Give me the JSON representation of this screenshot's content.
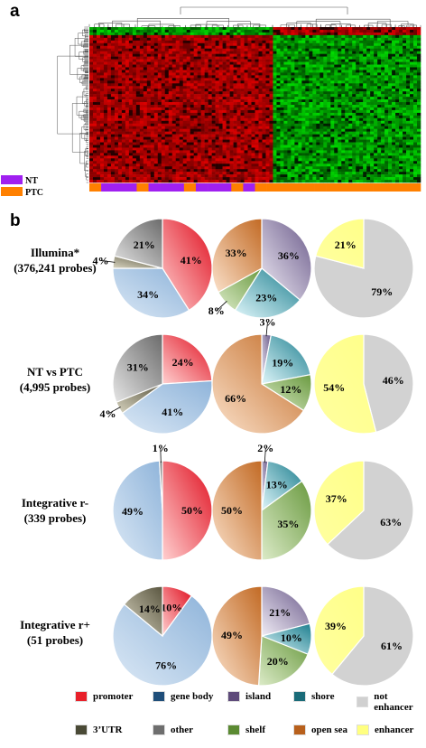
{
  "panels": {
    "a": "a",
    "b": "b"
  },
  "heatmap": {
    "legend": [
      {
        "name": "NT",
        "color": "#a020f0"
      },
      {
        "name": "PTC",
        "color": "#ff8000"
      }
    ],
    "sample_bar": [
      "PTC",
      "NT",
      "NT",
      "NT",
      "PTC",
      "NT",
      "NT",
      "NT",
      "PTC",
      "NT",
      "NT",
      "NT",
      "PTC",
      "NT",
      "PTC",
      "PTC",
      "PTC",
      "PTC",
      "PTC",
      "PTC",
      "PTC",
      "PTC",
      "PTC",
      "PTC",
      "PTC",
      "PTC",
      "PTC",
      "PTC"
    ],
    "colors": {
      "high": "#d00000",
      "low": "#00c000",
      "mid": "#000000"
    }
  },
  "rows": [
    {
      "label_line1": "Illumina*",
      "label_line2": "(376,241 probes)"
    },
    {
      "label_line1": "NT vs PTC",
      "label_line2": "(4,995 probes)"
    },
    {
      "label_line1": "Integrative r-",
      "label_line2": "(339 probes)"
    },
    {
      "label_line1": "Integrative r+",
      "label_line2": "(51 probes)"
    }
  ],
  "chart_data": [
    {
      "type": "pie",
      "row": "Illumina*",
      "title": "",
      "slices": [
        {
          "label": "promoter",
          "value": 41,
          "text": "41%"
        },
        {
          "label": "gene body",
          "value": 34,
          "text": "34%"
        },
        {
          "label": "3'UTR",
          "value": 4,
          "text": "4%"
        },
        {
          "label": "other",
          "value": 21,
          "text": "21%"
        }
      ]
    },
    {
      "type": "pie",
      "row": "Illumina*",
      "title": "",
      "slices": [
        {
          "label": "island",
          "value": 36,
          "text": "36%"
        },
        {
          "label": "shore",
          "value": 23,
          "text": "23%"
        },
        {
          "label": "shelf",
          "value": 8,
          "text": "8%"
        },
        {
          "label": "open sea",
          "value": 33,
          "text": "33%"
        }
      ]
    },
    {
      "type": "pie",
      "row": "Illumina*",
      "title": "",
      "slices": [
        {
          "label": "not enhancer",
          "value": 79,
          "text": "79%"
        },
        {
          "label": "enhancer",
          "value": 21,
          "text": "21%"
        }
      ]
    },
    {
      "type": "pie",
      "row": "NT vs PTC",
      "title": "",
      "slices": [
        {
          "label": "promoter",
          "value": 24,
          "text": "24%"
        },
        {
          "label": "gene body",
          "value": 41,
          "text": "41%"
        },
        {
          "label": "3'UTR",
          "value": 4,
          "text": "4%"
        },
        {
          "label": "other",
          "value": 31,
          "text": "31%"
        }
      ]
    },
    {
      "type": "pie",
      "row": "NT vs PTC",
      "title": "",
      "slices": [
        {
          "label": "island",
          "value": 3,
          "text": "3%"
        },
        {
          "label": "shore",
          "value": 19,
          "text": "19%"
        },
        {
          "label": "shelf",
          "value": 12,
          "text": "12%"
        },
        {
          "label": "open sea",
          "value": 66,
          "text": "66%"
        }
      ]
    },
    {
      "type": "pie",
      "row": "NT vs PTC",
      "title": "",
      "slices": [
        {
          "label": "not enhancer",
          "value": 46,
          "text": "46%"
        },
        {
          "label": "enhancer",
          "value": 54,
          "text": "54%"
        }
      ]
    },
    {
      "type": "pie",
      "row": "Integrative r-",
      "title": "",
      "slices": [
        {
          "label": "promoter",
          "value": 50,
          "text": "50%"
        },
        {
          "label": "gene body",
          "value": 49,
          "text": "49%"
        },
        {
          "label": "other",
          "value": 1,
          "text": "1%"
        }
      ]
    },
    {
      "type": "pie",
      "row": "Integrative r-",
      "title": "",
      "slices": [
        {
          "label": "island",
          "value": 2,
          "text": "2%"
        },
        {
          "label": "shore",
          "value": 13,
          "text": "13%"
        },
        {
          "label": "shelf",
          "value": 35,
          "text": "35%"
        },
        {
          "label": "open sea",
          "value": 50,
          "text": "50%"
        }
      ]
    },
    {
      "type": "pie",
      "row": "Integrative r-",
      "title": "",
      "slices": [
        {
          "label": "not enhancer",
          "value": 63,
          "text": "63%"
        },
        {
          "label": "enhancer",
          "value": 37,
          "text": "37%"
        }
      ]
    },
    {
      "type": "pie",
      "row": "Integrative r+",
      "title": "",
      "slices": [
        {
          "label": "promoter",
          "value": 10,
          "text": "10%"
        },
        {
          "label": "gene body",
          "value": 76,
          "text": "76%"
        },
        {
          "label": "3'UTR",
          "value": 14,
          "text": "14%"
        }
      ]
    },
    {
      "type": "pie",
      "row": "Integrative r+",
      "title": "",
      "slices": [
        {
          "label": "island",
          "value": 21,
          "text": "21%"
        },
        {
          "label": "shore",
          "value": 10,
          "text": "10%"
        },
        {
          "label": "shelf",
          "value": 20,
          "text": "20%"
        },
        {
          "label": "open sea",
          "value": 49,
          "text": "49%"
        }
      ]
    },
    {
      "type": "pie",
      "row": "Integrative r+",
      "title": "",
      "slices": [
        {
          "label": "not enhancer",
          "value": 61,
          "text": "61%"
        },
        {
          "label": "enhancer",
          "value": 39,
          "text": "39%"
        }
      ]
    }
  ],
  "legend": [
    {
      "label": "promoter",
      "color": "#e8202a"
    },
    {
      "label": "gene body",
      "color": "#1f4e79"
    },
    {
      "label": "island",
      "color": "#5e4b7a"
    },
    {
      "label": "shore",
      "color": "#1a6b78"
    },
    {
      "label": "not enhancer",
      "color": "#d0d0d0"
    },
    {
      "label": "3’UTR",
      "color": "#4a4a36"
    },
    {
      "label": "other",
      "color": "#6e6e6e"
    },
    {
      "label": "shelf",
      "color": "#5b8a32"
    },
    {
      "label": "open sea",
      "color": "#b8601c"
    },
    {
      "label": "enhancer",
      "color": "#ffff80"
    }
  ]
}
